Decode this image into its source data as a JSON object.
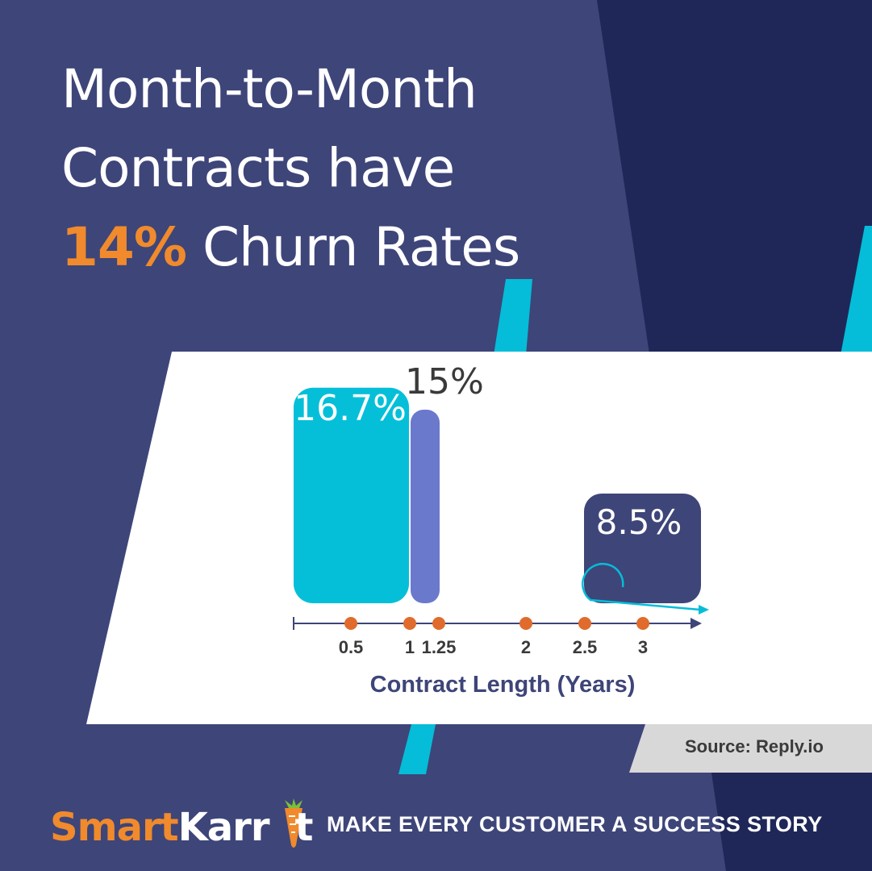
{
  "colors": {
    "bg_left": "#3e4579",
    "bg_right": "#1f2759",
    "stripe": "#05bdd8",
    "panel": "#ffffff",
    "accent_orange": "#f08a2c",
    "bar_cyan": "#05bfd9",
    "bar_periwinkle": "#6b79cc",
    "bar_navy": "#3e4579",
    "axis": "#3e4579",
    "dot": "#e06b2c",
    "axis_label": "#3a3a3a",
    "source_band": "#d8d8d8"
  },
  "title": {
    "line1": "Month-to-Month",
    "line2": "Contracts have",
    "highlight": "14%",
    "line3_rest": " Churn Rates"
  },
  "chart_data": {
    "type": "bar",
    "xlabel": "Contract Length (Years)",
    "x_ticks": [
      "0.5",
      "1",
      "1.25",
      "2",
      "2.5",
      "3"
    ],
    "bars": [
      {
        "x": 0.5,
        "value": 16.7,
        "label": "16.7%",
        "color": "#05bfd9"
      },
      {
        "x": 1,
        "value": 15,
        "label": "15%",
        "color": "#6b79cc"
      },
      {
        "x": 3,
        "value": 8.5,
        "label": "8.5%",
        "color": "#3e4579"
      }
    ],
    "grid": false,
    "legend": "none"
  },
  "source": "Source: Reply.io",
  "footer": {
    "logo_part1": "Smart",
    "logo_part2": "Karrot",
    "tagline": "MAKE EVERY CUSTOMER A SUCCESS STORY"
  }
}
